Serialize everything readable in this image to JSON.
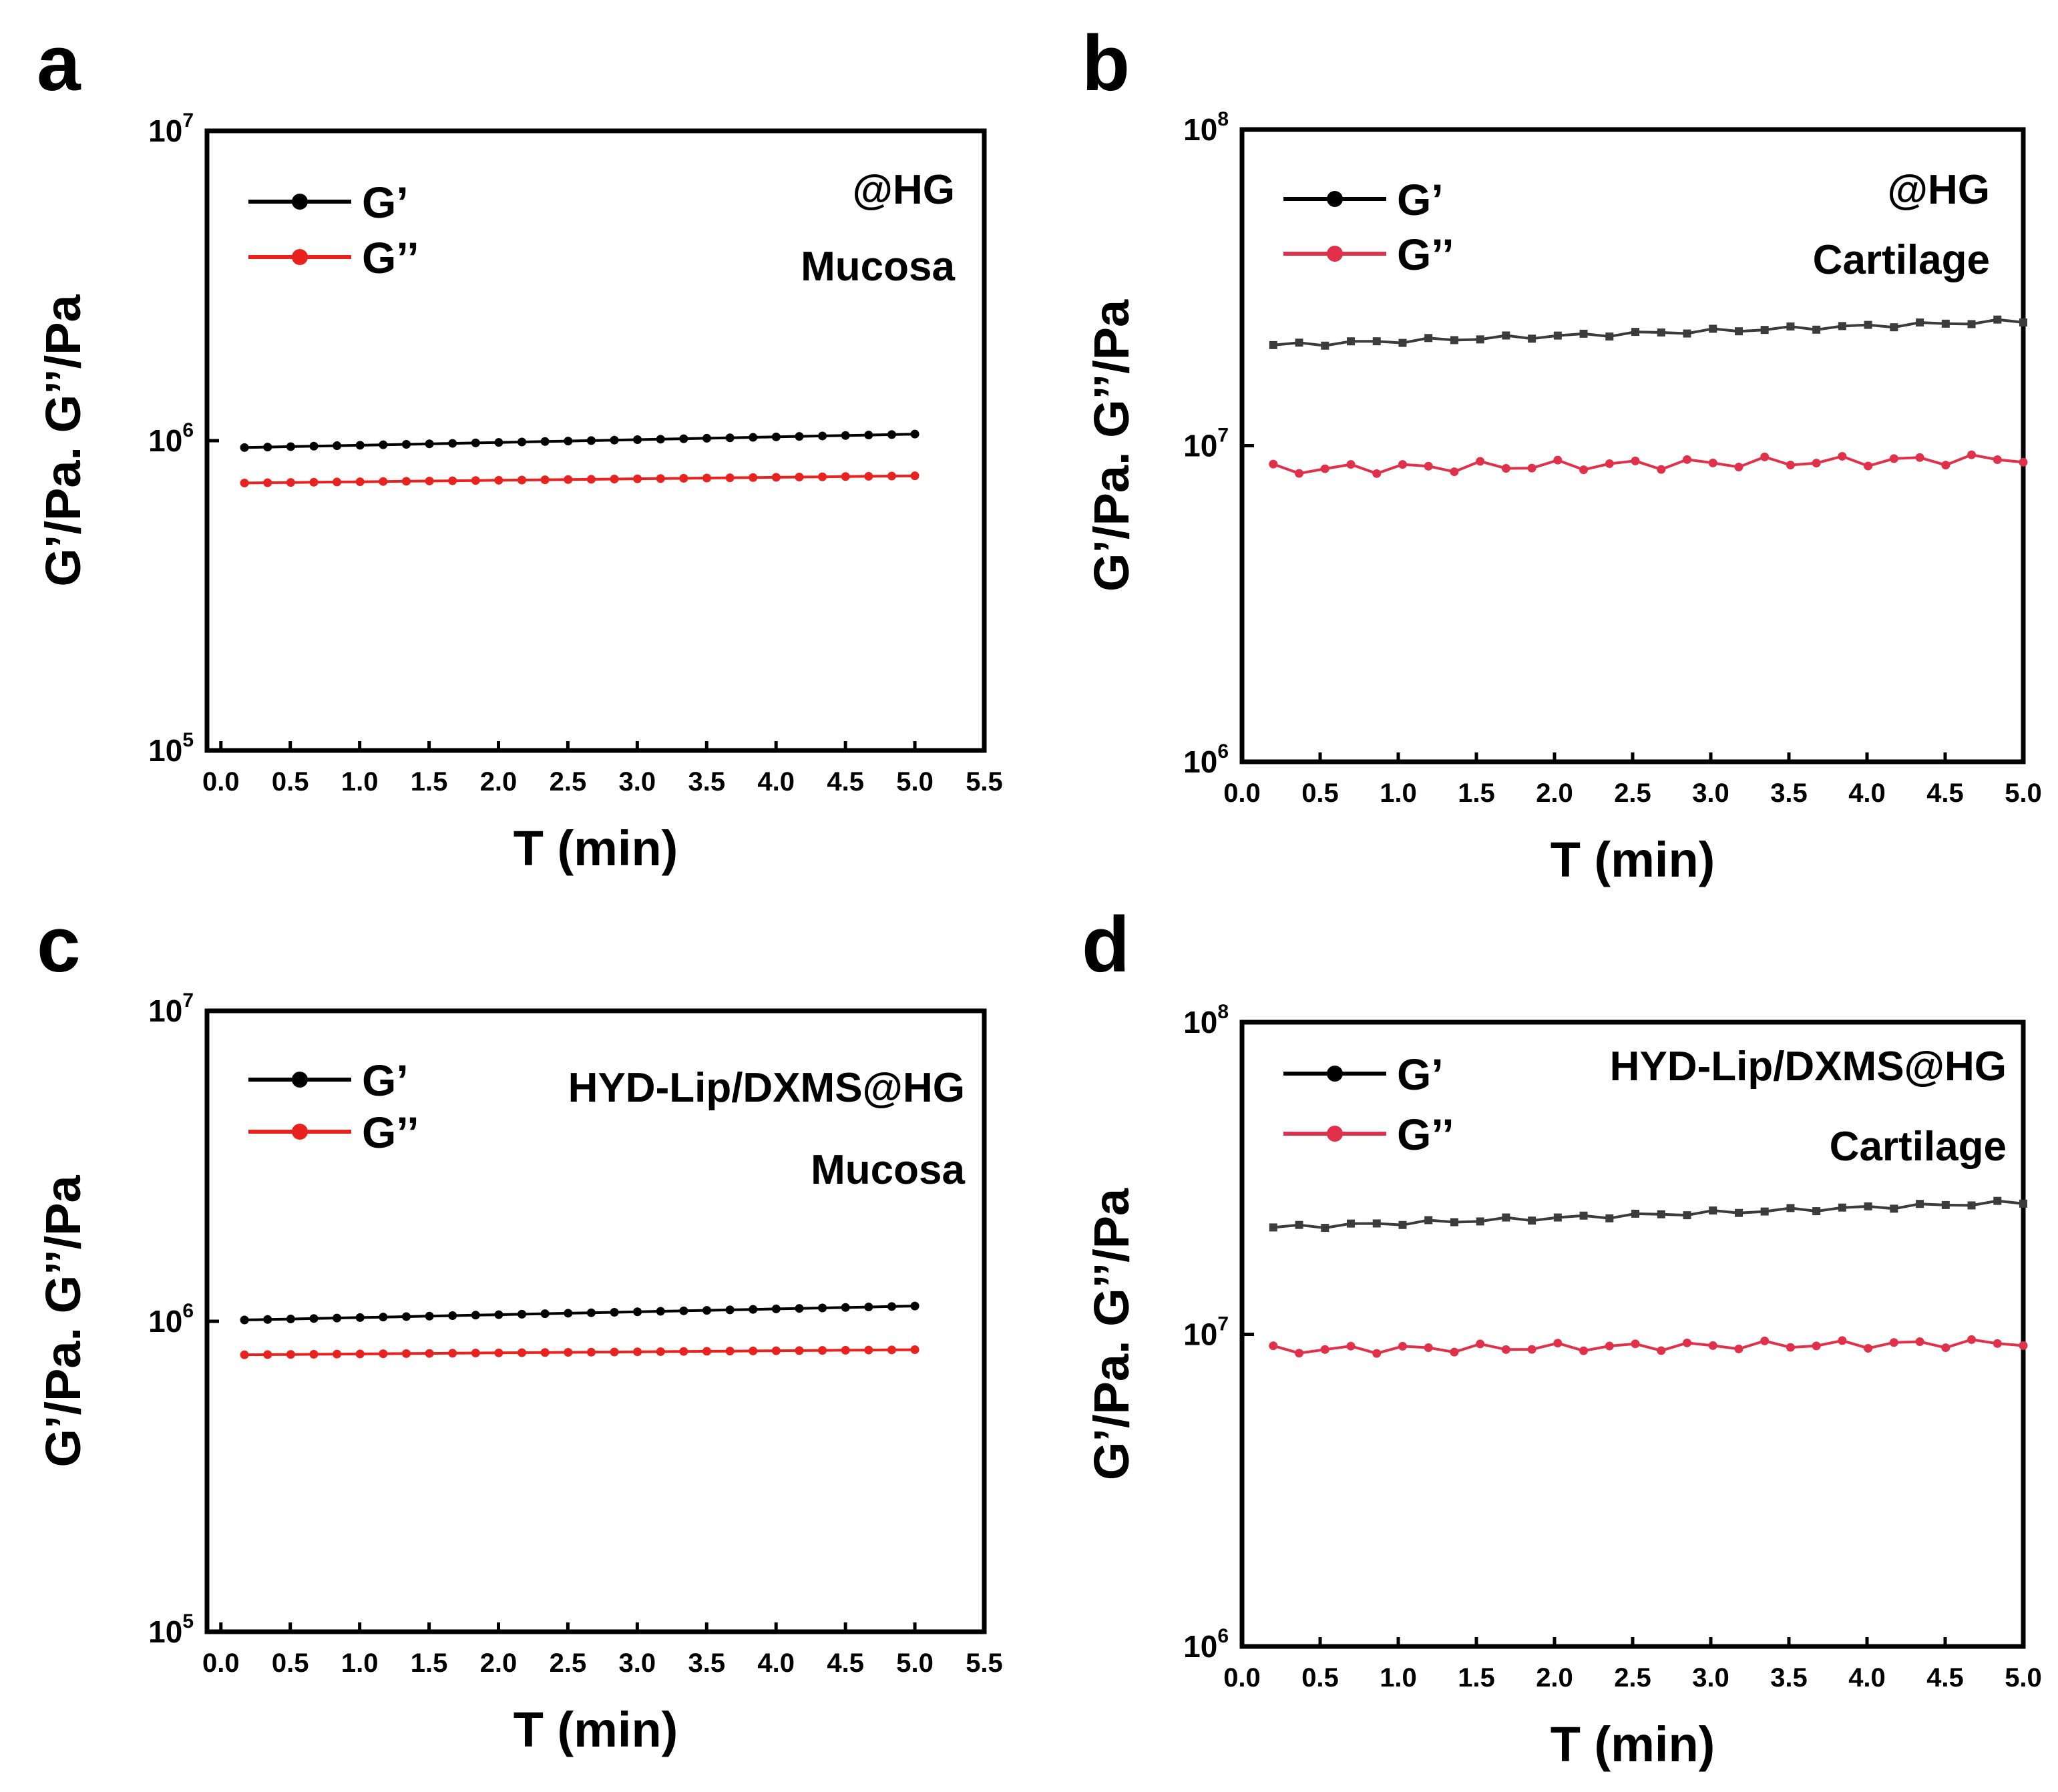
{
  "chart_data": [
    {
      "id": "a",
      "type": "line",
      "panel_label": "a",
      "xlabel": "T (min)",
      "ylabel": "G’/Pa. G’’/Pa",
      "yscale": "log",
      "xlim": [
        -0.1,
        5.5
      ],
      "ylim": [
        100000,
        10000000
      ],
      "xticks": [
        "0.0",
        "0.5",
        "1.0",
        "1.5",
        "2.0",
        "2.5",
        "3.0",
        "3.5",
        "4.0",
        "4.5",
        "5.0",
        "5.5"
      ],
      "yticks": [
        {
          "base": "10",
          "exp": "5"
        },
        {
          "base": "10",
          "exp": "6"
        },
        {
          "base": "10",
          "exp": "7"
        }
      ],
      "legend": [
        "G’",
        "G’’"
      ],
      "annotations": [
        "@HG",
        "Mucosa"
      ],
      "series": [
        {
          "name": "G’",
          "color": "#000000",
          "marker": "circle",
          "x_start": 0.17,
          "x_end": 5.0,
          "n": 30,
          "y_start": 950000,
          "y_end": 1050000
        },
        {
          "name": "G’’",
          "color": "#e8231f",
          "marker": "circle",
          "x_start": 0.17,
          "x_end": 5.0,
          "n": 30,
          "y_start": 730000,
          "y_end": 770000
        }
      ]
    },
    {
      "id": "b",
      "type": "line",
      "panel_label": "b",
      "xlabel": "T (min)",
      "ylabel": "G’/Pa. G’’/Pa",
      "yscale": "log",
      "xlim": [
        0.0,
        5.0
      ],
      "ylim": [
        1000000,
        100000000
      ],
      "xticks": [
        "0.0",
        "0.5",
        "1.0",
        "1.5",
        "2.0",
        "2.5",
        "3.0",
        "3.5",
        "4.0",
        "4.5",
        "5.0"
      ],
      "yticks": [
        {
          "base": "10",
          "exp": "6"
        },
        {
          "base": "10",
          "exp": "7"
        },
        {
          "base": "10",
          "exp": "8"
        }
      ],
      "legend": [
        "G’",
        "G’’"
      ],
      "annotations": [
        "@HG",
        "Cartilage"
      ],
      "series": [
        {
          "name": "G’",
          "color": "#3c3c3c",
          "marker": "square",
          "x_start": 0.2,
          "x_end": 5.0,
          "n": 30,
          "y_start": 20800000,
          "y_end": 24800000,
          "jitter": 0.02
        },
        {
          "name": "G’’",
          "color": "#e0304a",
          "marker": "circle",
          "x_start": 0.2,
          "x_end": 5.0,
          "n": 30,
          "y_start": 8400000,
          "y_end": 9100000,
          "jitter": 0.05
        }
      ]
    },
    {
      "id": "c",
      "type": "line",
      "panel_label": "c",
      "xlabel": "T (min)",
      "ylabel": "G’/Pa. G’’/Pa",
      "yscale": "log",
      "xlim": [
        -0.1,
        5.5
      ],
      "ylim": [
        100000,
        10000000
      ],
      "xticks": [
        "0.0",
        "0.5",
        "1.0",
        "1.5",
        "2.0",
        "2.5",
        "3.0",
        "3.5",
        "4.0",
        "4.5",
        "5.0",
        "5.5"
      ],
      "yticks": [
        {
          "base": "10",
          "exp": "5"
        },
        {
          "base": "10",
          "exp": "6"
        },
        {
          "base": "10",
          "exp": "7"
        }
      ],
      "legend": [
        "G’",
        "G’’"
      ],
      "annotations": [
        "HYD-Lip/DXMS@HG",
        "Mucosa"
      ],
      "series": [
        {
          "name": "G’",
          "color": "#000000",
          "marker": "circle",
          "x_start": 0.17,
          "x_end": 5.0,
          "n": 30,
          "y_start": 1010000,
          "y_end": 1120000
        },
        {
          "name": "G’’",
          "color": "#e8231f",
          "marker": "circle",
          "x_start": 0.17,
          "x_end": 5.0,
          "n": 30,
          "y_start": 780000,
          "y_end": 810000
        }
      ]
    },
    {
      "id": "d",
      "type": "line",
      "panel_label": "d",
      "xlabel": "T (min)",
      "ylabel": "G’/Pa. G’’/Pa",
      "yscale": "log",
      "xlim": [
        0.0,
        5.0
      ],
      "ylim": [
        1000000,
        100000000
      ],
      "xticks": [
        "0.0",
        "0.5",
        "1.0",
        "1.5",
        "2.0",
        "2.5",
        "3.0",
        "3.5",
        "4.0",
        "4.5",
        "5.0"
      ],
      "yticks": [
        {
          "base": "10",
          "exp": "6"
        },
        {
          "base": "10",
          "exp": "7"
        },
        {
          "base": "10",
          "exp": "8"
        }
      ],
      "legend": [
        "G’",
        "G’’"
      ],
      "annotations": [
        "HYD-Lip/DXMS@HG",
        "Cartilage"
      ],
      "series": [
        {
          "name": "G’",
          "color": "#3c3c3c",
          "marker": "square",
          "x_start": 0.2,
          "x_end": 5.0,
          "n": 30,
          "y_start": 22000000,
          "y_end": 26500000,
          "jitter": 0.02
        },
        {
          "name": "G’’",
          "color": "#e0304a",
          "marker": "circle",
          "x_start": 0.2,
          "x_end": 5.0,
          "n": 30,
          "y_start": 8900000,
          "y_end": 9400000,
          "jitter": 0.04
        }
      ]
    }
  ]
}
